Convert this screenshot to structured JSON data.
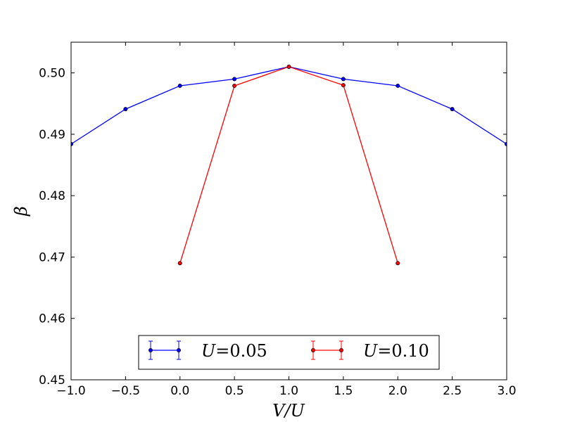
{
  "chart_data": {
    "type": "line",
    "xlabel": "V/U",
    "ylabel": "β",
    "xlim": [
      -1.0,
      3.0
    ],
    "ylim": [
      0.45,
      0.505
    ],
    "x_ticks": [
      -1.0,
      -0.5,
      0.0,
      0.5,
      1.0,
      1.5,
      2.0,
      2.5,
      3.0
    ],
    "x_tick_labels": [
      "−1.0",
      "−0.5",
      "0.0",
      "0.5",
      "1.0",
      "1.5",
      "2.0",
      "2.5",
      "3.0"
    ],
    "y_ticks": [
      0.45,
      0.46,
      0.47,
      0.48,
      0.49,
      0.5
    ],
    "y_tick_labels": [
      "0.45",
      "0.46",
      "0.47",
      "0.48",
      "0.49",
      "0.50"
    ],
    "grid": false,
    "legend_position": "lower-center",
    "series": [
      {
        "name": "U=0.05",
        "legend_var": "U",
        "legend_val": "0.05",
        "color": "#0000ff",
        "x": [
          -1.0,
          -0.5,
          0.0,
          0.5,
          1.0,
          1.5,
          2.0,
          2.5,
          3.0
        ],
        "y": [
          0.4884,
          0.4941,
          0.4979,
          0.499,
          0.501,
          0.499,
          0.4979,
          0.4941,
          0.4884
        ]
      },
      {
        "name": "U=0.10",
        "legend_var": "U",
        "legend_val": "0.10",
        "color": "#ff0000",
        "x": [
          0.0,
          0.5,
          1.0,
          1.5,
          2.0
        ],
        "y": [
          0.469,
          0.4979,
          0.501,
          0.498,
          0.469
        ]
      }
    ]
  }
}
